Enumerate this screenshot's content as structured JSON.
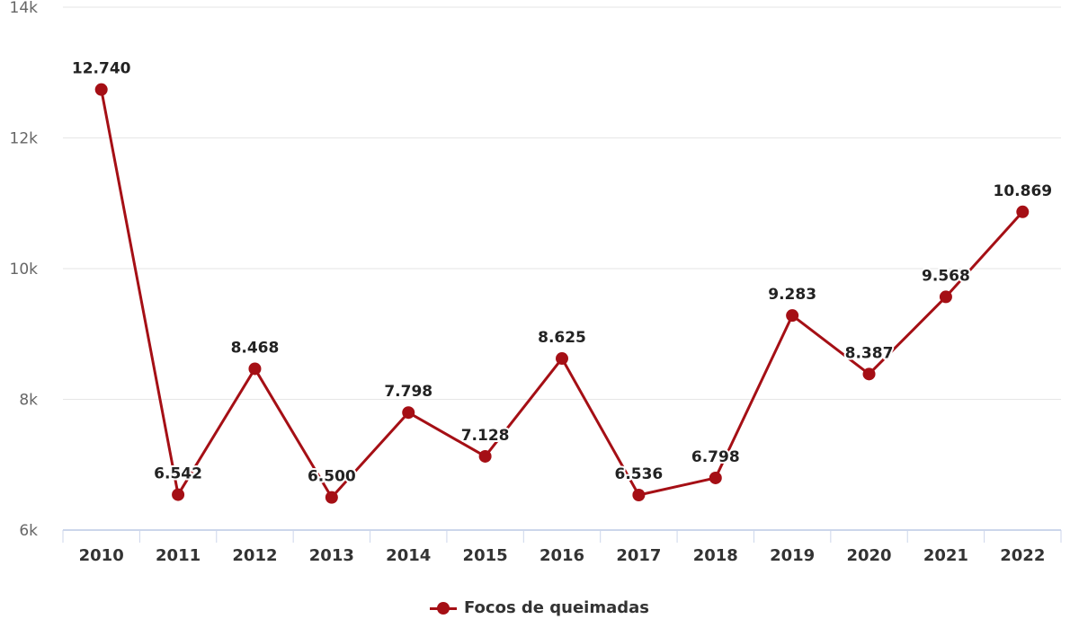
{
  "chart_data": {
    "type": "line",
    "title": "",
    "xlabel": "",
    "ylabel": "",
    "categories": [
      "2010",
      "2011",
      "2012",
      "2013",
      "2014",
      "2015",
      "2016",
      "2017",
      "2018",
      "2019",
      "2020",
      "2021",
      "2022"
    ],
    "series": [
      {
        "name": "Focos de queimadas",
        "color": "#a50f15",
        "values": [
          12740,
          6542,
          8468,
          6500,
          7798,
          7128,
          8625,
          6536,
          6798,
          9283,
          8387,
          9568,
          10869
        ],
        "data_labels": [
          "12.740",
          "6.542",
          "8.468",
          "6.500",
          "7.798",
          "7.128",
          "8.625",
          "6.536",
          "6.798",
          "9.283",
          "8.387",
          "9.568",
          "10.869"
        ]
      }
    ],
    "ylim": [
      6000,
      14000
    ],
    "y_ticks": [
      {
        "value": 6000,
        "label": "6k"
      },
      {
        "value": 8000,
        "label": "8k"
      },
      {
        "value": 10000,
        "label": "10k"
      },
      {
        "value": 12000,
        "label": "12k"
      },
      {
        "value": 14000,
        "label": "14k"
      }
    ],
    "grid": true,
    "legend_position": "bottom-center"
  }
}
